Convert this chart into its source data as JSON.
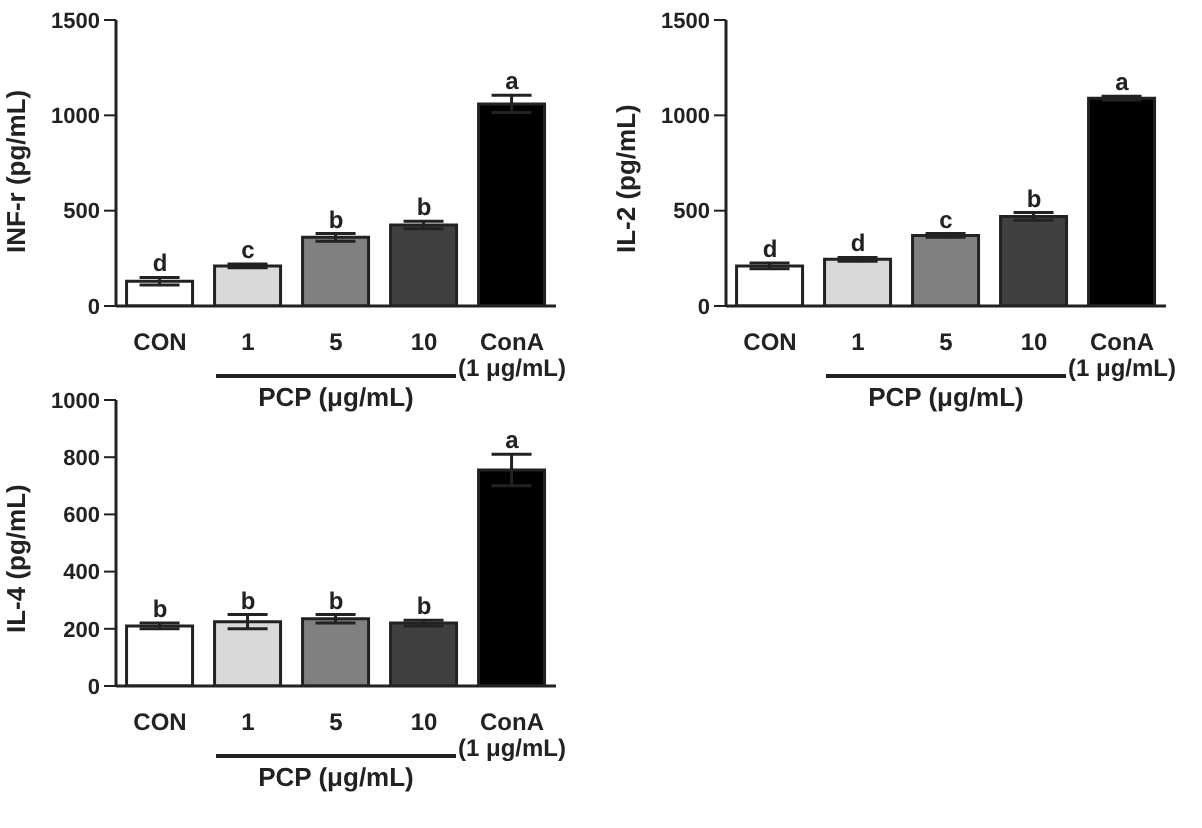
{
  "chart_data": [
    {
      "type": "bar",
      "ylabel": "INF-r (pg/mL)",
      "xlabel": "PCP (μg/mL)",
      "categories": [
        "CON",
        "1",
        "5",
        "10",
        "ConA\n(1 μg/mL)"
      ],
      "values": [
        130,
        210,
        360,
        425,
        1060
      ],
      "errors": [
        20,
        10,
        20,
        20,
        45
      ],
      "colors": [
        "#ffffff",
        "#d9d9d9",
        "#808080",
        "#404040",
        "#000000"
      ],
      "ylim": [
        0,
        1500
      ],
      "yticks": [
        0,
        500,
        1000,
        1500
      ],
      "grid": false,
      "legend": false,
      "annotations": [
        {
          "text": "d",
          "x": "CON",
          "y": 150
        },
        {
          "text": "c",
          "x": "1",
          "y": 220
        },
        {
          "text": "b",
          "x": "5",
          "y": 380
        },
        {
          "text": "b",
          "x": "10",
          "y": 445
        },
        {
          "text": "a",
          "x": "ConA\n(1 μg/mL)",
          "y": 1105
        }
      ]
    },
    {
      "type": "bar",
      "ylabel": "IL-2 (pg/mL)",
      "xlabel": "PCP (μg/mL)",
      "categories": [
        "CON",
        "1",
        "5",
        "10",
        "ConA\n(1 μg/mL)"
      ],
      "values": [
        210,
        245,
        370,
        470,
        1090
      ],
      "errors": [
        15,
        10,
        10,
        20,
        10
      ],
      "colors": [
        "#ffffff",
        "#d9d9d9",
        "#808080",
        "#404040",
        "#000000"
      ],
      "ylim": [
        0,
        1500
      ],
      "yticks": [
        0,
        500,
        1000,
        1500
      ],
      "grid": false,
      "legend": false,
      "annotations": [
        {
          "text": "d",
          "x": "CON",
          "y": 225
        },
        {
          "text": "d",
          "x": "1",
          "y": 255
        },
        {
          "text": "c",
          "x": "5",
          "y": 380
        },
        {
          "text": "b",
          "x": "10",
          "y": 490
        },
        {
          "text": "a",
          "x": "ConA\n(1 μg/mL)",
          "y": 1100
        }
      ]
    },
    {
      "type": "bar",
      "ylabel": "IL-4 (pg/mL)",
      "xlabel": "PCP (μg/mL)",
      "categories": [
        "CON",
        "1",
        "5",
        "10",
        "ConA\n(1 μg/mL)"
      ],
      "values": [
        210,
        225,
        235,
        220,
        755
      ],
      "errors": [
        10,
        25,
        15,
        10,
        55
      ],
      "colors": [
        "#ffffff",
        "#d9d9d9",
        "#808080",
        "#404040",
        "#000000"
      ],
      "ylim": [
        0,
        1000
      ],
      "yticks": [
        0,
        200,
        400,
        600,
        800,
        1000
      ],
      "grid": false,
      "legend": false,
      "annotations": [
        {
          "text": "b",
          "x": "CON",
          "y": 220
        },
        {
          "text": "b",
          "x": "1",
          "y": 250
        },
        {
          "text": "b",
          "x": "5",
          "y": 250
        },
        {
          "text": "b",
          "x": "10",
          "y": 230
        },
        {
          "text": "a",
          "x": "ConA\n(1 μg/mL)",
          "y": 810
        }
      ]
    }
  ]
}
